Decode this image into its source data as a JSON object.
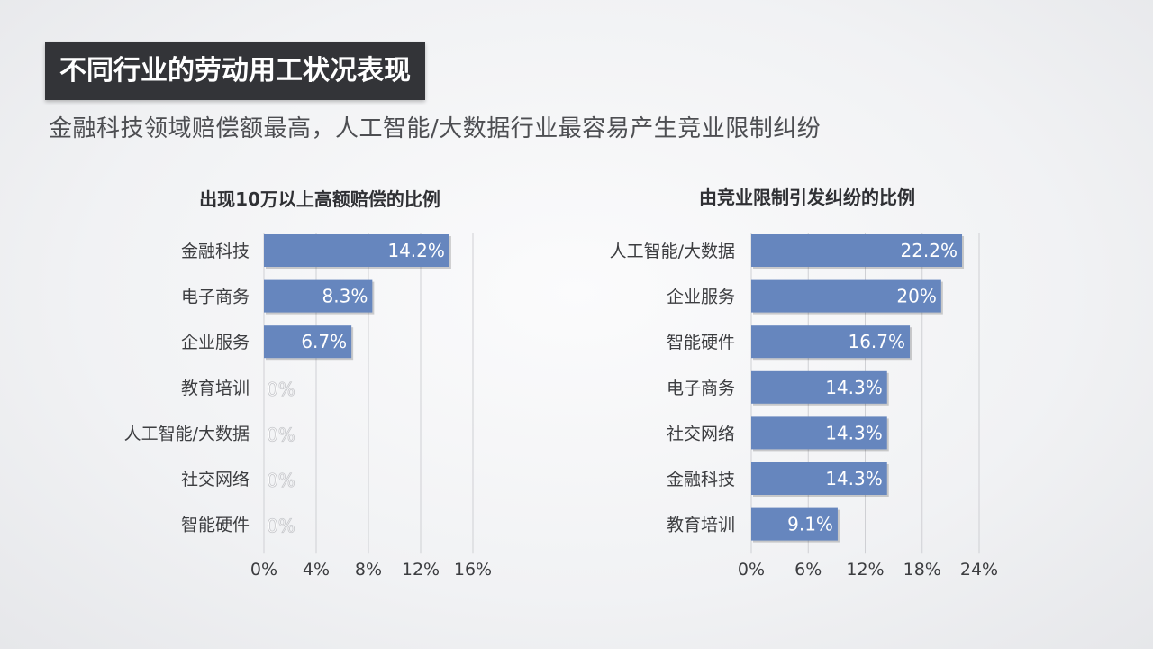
{
  "header": {
    "title": "不同行业的劳动用工状况表现",
    "subtitle": "金融科技领域赔偿额最高，人工智能/大数据行业最容易产生竞业限制纠纷"
  },
  "style": {
    "bar_color": "#6686be",
    "title_bg": "#333438",
    "grid_color": "#cfd0d4"
  },
  "chart_data": [
    {
      "type": "bar",
      "orientation": "horizontal",
      "title": "出现10万以上高额赔偿的比例",
      "categories": [
        "金融科技",
        "电子商务",
        "企业服务",
        "教育培训",
        "人工智能/大数据",
        "社交网络",
        "智能硬件"
      ],
      "values": [
        14.2,
        8.3,
        6.7,
        0,
        0,
        0,
        0
      ],
      "value_labels": [
        "14.2%",
        "8.3%",
        "6.7%",
        "0%",
        "0%",
        "0%",
        "0%"
      ],
      "xlim": [
        0,
        16
      ],
      "ticks": [
        0,
        4,
        8,
        12,
        16
      ],
      "tick_labels": [
        "0%",
        "4%",
        "8%",
        "12%",
        "16%"
      ],
      "grid": true
    },
    {
      "type": "bar",
      "orientation": "horizontal",
      "title": "由竞业限制引发纠纷的比例",
      "categories": [
        "人工智能/大数据",
        "企业服务",
        "智能硬件",
        "电子商务",
        "社交网络",
        "金融科技",
        "教育培训"
      ],
      "values": [
        22.2,
        20,
        16.7,
        14.3,
        14.3,
        14.3,
        9.1
      ],
      "value_labels": [
        "22.2%",
        "20%",
        "16.7%",
        "14.3%",
        "14.3%",
        "14.3%",
        "9.1%"
      ],
      "xlim": [
        0,
        24
      ],
      "ticks": [
        0,
        6,
        12,
        18,
        24
      ],
      "tick_labels": [
        "0%",
        "6%",
        "12%",
        "18%",
        "24%"
      ],
      "grid": true
    }
  ]
}
